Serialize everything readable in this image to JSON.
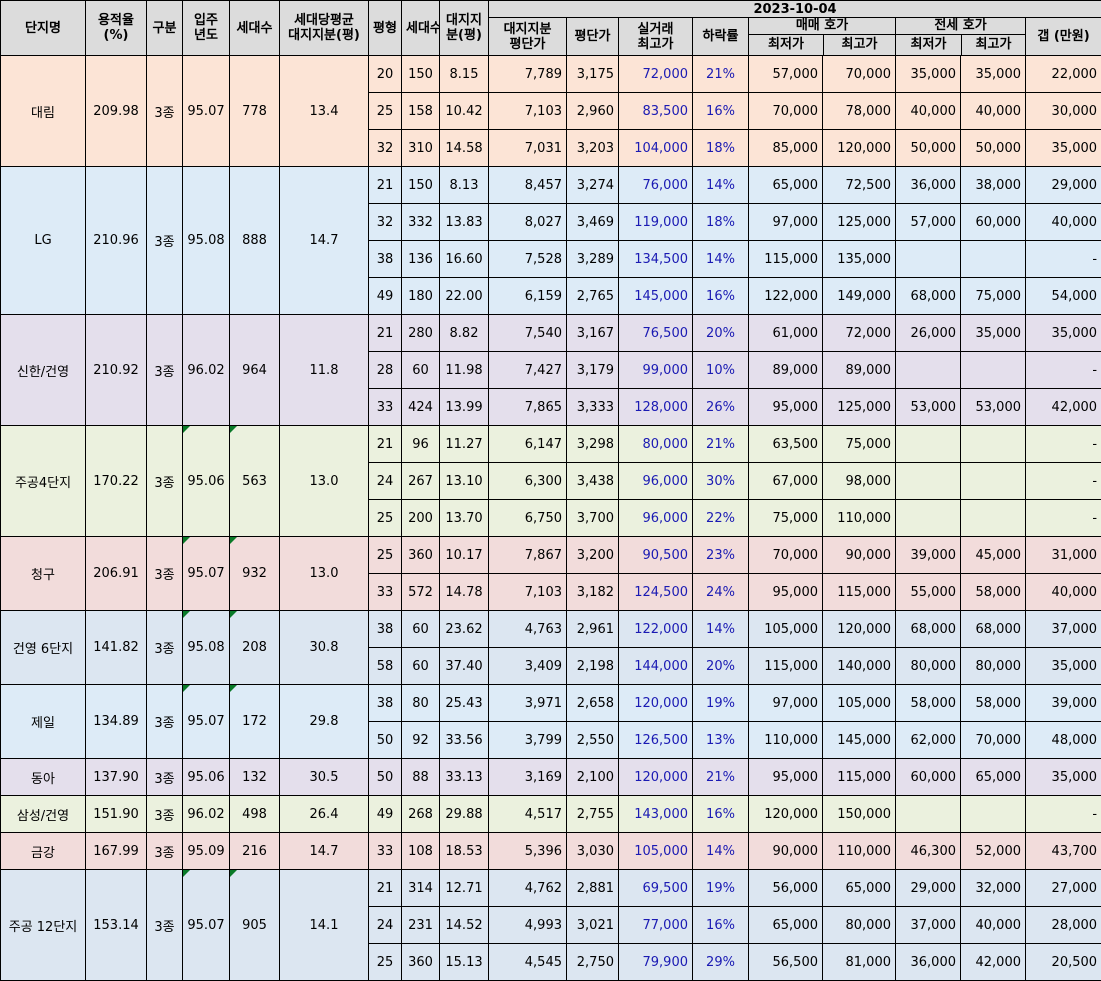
{
  "header": {
    "date": "2023-10-04",
    "complex_name": "단지명",
    "floor_area_ratio": "용적율\n(%)",
    "zone": "구분",
    "move_in_year": "입주\n년도",
    "households": "세대수",
    "avg_land_share": "세대당평균\n대지지분(평)",
    "pyeong": "평형",
    "unit_households": "세대수",
    "land_share": "대지지\n분(평)",
    "land_price_per_pyeong": "대지지분\n평단가",
    "price_per_pyeong": "평단가",
    "peak_trade": "실거래\n최고가",
    "drop_rate": "하락률",
    "sale_group": "매매 호가",
    "jeonse_group": "전세 호가",
    "min": "최저가",
    "max": "최고가",
    "gap": "갭 (만원)"
  },
  "colors": {
    "header_bg": "#dcdcdc",
    "peach": "#fce4d6",
    "blue": "#ddebf7",
    "lavender": "#e4dfec",
    "green": "#ebf1de",
    "pink": "#f2dcdb",
    "slate": "#dce6f1",
    "peak_text": "#1a1ab3",
    "corner_marker": "#0a7a28"
  },
  "complexes": [
    {
      "name": "대림",
      "far": "209.98",
      "zone": "3종",
      "year": "95.07",
      "households": "778",
      "avg_share": "13.4",
      "color": "peach",
      "marker": false,
      "units": [
        {
          "py": "20",
          "hh": "150",
          "share": "8.15",
          "land_pp": "7,789",
          "pp": "3,175",
          "peak": "72,000",
          "drop": "21%",
          "s_min": "57,000",
          "s_max": "70,000",
          "j_min": "35,000",
          "j_max": "35,000",
          "gap": "22,000"
        },
        {
          "py": "25",
          "hh": "158",
          "share": "10.42",
          "land_pp": "7,103",
          "pp": "2,960",
          "peak": "83,500",
          "drop": "16%",
          "s_min": "70,000",
          "s_max": "78,000",
          "j_min": "40,000",
          "j_max": "40,000",
          "gap": "30,000"
        },
        {
          "py": "32",
          "hh": "310",
          "share": "14.58",
          "land_pp": "7,031",
          "pp": "3,203",
          "peak": "104,000",
          "drop": "18%",
          "s_min": "85,000",
          "s_max": "120,000",
          "j_min": "50,000",
          "j_max": "50,000",
          "gap": "35,000"
        }
      ]
    },
    {
      "name": "LG",
      "far": "210.96",
      "zone": "3종",
      "year": "95.08",
      "households": "888",
      "avg_share": "14.7",
      "color": "blue",
      "marker": false,
      "units": [
        {
          "py": "21",
          "hh": "150",
          "share": "8.13",
          "land_pp": "8,457",
          "pp": "3,274",
          "peak": "76,000",
          "drop": "14%",
          "s_min": "65,000",
          "s_max": "72,500",
          "j_min": "36,000",
          "j_max": "38,000",
          "gap": "29,000"
        },
        {
          "py": "32",
          "hh": "332",
          "share": "13.83",
          "land_pp": "8,027",
          "pp": "3,469",
          "peak": "119,000",
          "drop": "18%",
          "s_min": "97,000",
          "s_max": "125,000",
          "j_min": "57,000",
          "j_max": "60,000",
          "gap": "40,000"
        },
        {
          "py": "38",
          "hh": "136",
          "share": "16.60",
          "land_pp": "7,528",
          "pp": "3,289",
          "peak": "134,500",
          "drop": "14%",
          "s_min": "115,000",
          "s_max": "135,000",
          "j_min": "",
          "j_max": "",
          "gap": "-"
        },
        {
          "py": "49",
          "hh": "180",
          "share": "22.00",
          "land_pp": "6,159",
          "pp": "2,765",
          "peak": "145,000",
          "drop": "16%",
          "s_min": "122,000",
          "s_max": "149,000",
          "j_min": "68,000",
          "j_max": "75,000",
          "gap": "54,000"
        }
      ]
    },
    {
      "name": "신한/건영",
      "far": "210.92",
      "zone": "3종",
      "year": "96.02",
      "households": "964",
      "avg_share": "11.8",
      "color": "lavender",
      "marker": false,
      "units": [
        {
          "py": "21",
          "hh": "280",
          "share": "8.82",
          "land_pp": "7,540",
          "pp": "3,167",
          "peak": "76,500",
          "drop": "20%",
          "s_min": "61,000",
          "s_max": "72,000",
          "j_min": "26,000",
          "j_max": "35,000",
          "gap": "35,000"
        },
        {
          "py": "28",
          "hh": "60",
          "share": "11.98",
          "land_pp": "7,427",
          "pp": "3,179",
          "peak": "99,000",
          "drop": "10%",
          "s_min": "89,000",
          "s_max": "89,000",
          "j_min": "",
          "j_max": "",
          "gap": "-"
        },
        {
          "py": "33",
          "hh": "424",
          "share": "13.99",
          "land_pp": "7,865",
          "pp": "3,333",
          "peak": "128,000",
          "drop": "26%",
          "s_min": "95,000",
          "s_max": "125,000",
          "j_min": "53,000",
          "j_max": "53,000",
          "gap": "42,000"
        }
      ]
    },
    {
      "name": "주공4단지",
      "far": "170.22",
      "zone": "3종",
      "year": "95.06",
      "households": "563",
      "avg_share": "13.0",
      "color": "green",
      "marker": true,
      "units": [
        {
          "py": "21",
          "hh": "96",
          "share": "11.27",
          "land_pp": "6,147",
          "pp": "3,298",
          "peak": "80,000",
          "drop": "21%",
          "s_min": "63,500",
          "s_max": "75,000",
          "j_min": "",
          "j_max": "",
          "gap": "-"
        },
        {
          "py": "24",
          "hh": "267",
          "share": "13.10",
          "land_pp": "6,300",
          "pp": "3,438",
          "peak": "96,000",
          "drop": "30%",
          "s_min": "67,000",
          "s_max": "98,000",
          "j_min": "",
          "j_max": "",
          "gap": "-"
        },
        {
          "py": "25",
          "hh": "200",
          "share": "13.70",
          "land_pp": "6,750",
          "pp": "3,700",
          "peak": "96,000",
          "drop": "22%",
          "s_min": "75,000",
          "s_max": "110,000",
          "j_min": "",
          "j_max": "",
          "gap": "-"
        }
      ]
    },
    {
      "name": "청구",
      "far": "206.91",
      "zone": "3종",
      "year": "95.07",
      "households": "932",
      "avg_share": "13.0",
      "color": "pink",
      "marker": true,
      "units": [
        {
          "py": "25",
          "hh": "360",
          "share": "10.17",
          "land_pp": "7,867",
          "pp": "3,200",
          "peak": "90,500",
          "drop": "23%",
          "s_min": "70,000",
          "s_max": "90,000",
          "j_min": "39,000",
          "j_max": "45,000",
          "gap": "31,000"
        },
        {
          "py": "33",
          "hh": "572",
          "share": "14.78",
          "land_pp": "7,103",
          "pp": "3,182",
          "peak": "124,500",
          "drop": "24%",
          "s_min": "95,000",
          "s_max": "115,000",
          "j_min": "55,000",
          "j_max": "58,000",
          "gap": "40,000"
        }
      ]
    },
    {
      "name": "건영 6단지",
      "far": "141.82",
      "zone": "3종",
      "year": "95.08",
      "households": "208",
      "avg_share": "30.8",
      "color": "slate",
      "marker": true,
      "units": [
        {
          "py": "38",
          "hh": "60",
          "share": "23.62",
          "land_pp": "4,763",
          "pp": "2,961",
          "peak": "122,000",
          "drop": "14%",
          "s_min": "105,000",
          "s_max": "120,000",
          "j_min": "68,000",
          "j_max": "68,000",
          "gap": "37,000"
        },
        {
          "py": "58",
          "hh": "60",
          "share": "37.40",
          "land_pp": "3,409",
          "pp": "2,198",
          "peak": "144,000",
          "drop": "20%",
          "s_min": "115,000",
          "s_max": "140,000",
          "j_min": "80,000",
          "j_max": "80,000",
          "gap": "35,000"
        }
      ]
    },
    {
      "name": "제일",
      "far": "134.89",
      "zone": "3종",
      "year": "95.07",
      "households": "172",
      "avg_share": "29.8",
      "color": "blue",
      "marker": true,
      "units": [
        {
          "py": "38",
          "hh": "80",
          "share": "25.43",
          "land_pp": "3,971",
          "pp": "2,658",
          "peak": "120,000",
          "drop": "19%",
          "s_min": "97,000",
          "s_max": "105,000",
          "j_min": "58,000",
          "j_max": "58,000",
          "gap": "39,000"
        },
        {
          "py": "50",
          "hh": "92",
          "share": "33.56",
          "land_pp": "3,799",
          "pp": "2,550",
          "peak": "126,500",
          "drop": "13%",
          "s_min": "110,000",
          "s_max": "145,000",
          "j_min": "62,000",
          "j_max": "70,000",
          "gap": "48,000"
        }
      ]
    },
    {
      "name": "동아",
      "far": "137.90",
      "zone": "3종",
      "year": "95.06",
      "households": "132",
      "avg_share": "30.5",
      "color": "lavender",
      "marker": false,
      "units": [
        {
          "py": "50",
          "hh": "88",
          "share": "33.13",
          "land_pp": "3,169",
          "pp": "2,100",
          "peak": "120,000",
          "drop": "21%",
          "s_min": "95,000",
          "s_max": "115,000",
          "j_min": "60,000",
          "j_max": "65,000",
          "gap": "35,000"
        }
      ]
    },
    {
      "name": "삼성/건영",
      "far": "151.90",
      "zone": "3종",
      "year": "96.02",
      "households": "498",
      "avg_share": "26.4",
      "color": "green",
      "marker": false,
      "units": [
        {
          "py": "49",
          "hh": "268",
          "share": "29.88",
          "land_pp": "4,517",
          "pp": "2,755",
          "peak": "143,000",
          "drop": "16%",
          "s_min": "120,000",
          "s_max": "150,000",
          "j_min": "",
          "j_max": "",
          "gap": "-"
        }
      ]
    },
    {
      "name": "금강",
      "far": "167.99",
      "zone": "3종",
      "year": "95.09",
      "households": "216",
      "avg_share": "14.7",
      "color": "pink",
      "marker": false,
      "units": [
        {
          "py": "33",
          "hh": "108",
          "share": "18.53",
          "land_pp": "5,396",
          "pp": "3,030",
          "peak": "105,000",
          "drop": "14%",
          "s_min": "90,000",
          "s_max": "110,000",
          "j_min": "46,300",
          "j_max": "52,000",
          "gap": "43,700"
        }
      ]
    },
    {
      "name": "주공 12단지",
      "far": "153.14",
      "zone": "3종",
      "year": "95.07",
      "households": "905",
      "avg_share": "14.1",
      "color": "slate",
      "marker": true,
      "units": [
        {
          "py": "21",
          "hh": "314",
          "share": "12.71",
          "land_pp": "4,762",
          "pp": "2,881",
          "peak": "69,500",
          "drop": "19%",
          "s_min": "56,000",
          "s_max": "65,000",
          "j_min": "29,000",
          "j_max": "32,000",
          "gap": "27,000"
        },
        {
          "py": "24",
          "hh": "231",
          "share": "14.52",
          "land_pp": "4,993",
          "pp": "3,021",
          "peak": "77,000",
          "drop": "16%",
          "s_min": "65,000",
          "s_max": "80,000",
          "j_min": "37,000",
          "j_max": "40,000",
          "gap": "28,000"
        },
        {
          "py": "25",
          "hh": "360",
          "share": "15.13",
          "land_pp": "4,545",
          "pp": "2,750",
          "peak": "79,900",
          "drop": "29%",
          "s_min": "56,500",
          "s_max": "81,000",
          "j_min": "36,000",
          "j_max": "42,000",
          "gap": "20,500"
        }
      ]
    }
  ]
}
